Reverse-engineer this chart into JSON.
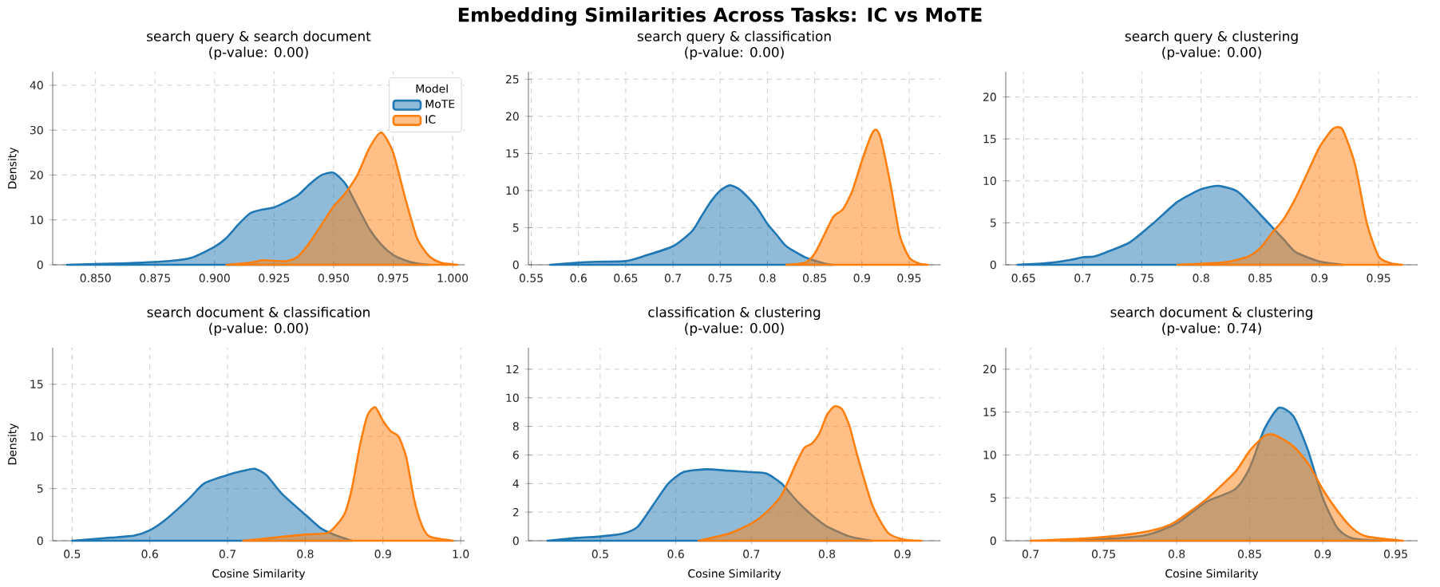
{
  "chart_data": [
    {
      "type": "other",
      "title": "Embedding Similarities Across Tasks: IC vs MoTE"
    },
    {
      "type": "area",
      "title": "search query & search document",
      "subtitle": "(p-value: 0.00)",
      "ylabel": "Density",
      "legend_title": "Model",
      "legend": "top right",
      "grid": true,
      "xlim": [
        0.832,
        1.005
      ],
      "ylim": [
        0,
        43
      ],
      "xticks": [
        {
          "value": 0.85,
          "label": "0.850"
        },
        {
          "value": 0.875,
          "label": "0.875"
        },
        {
          "value": 0.9,
          "label": "0.900"
        },
        {
          "value": 0.925,
          "label": "0.925"
        },
        {
          "value": 0.95,
          "label": "0.950"
        },
        {
          "value": 0.975,
          "label": "0.975"
        },
        {
          "value": 1.0,
          "label": "1.000"
        }
      ],
      "yticks": [
        0,
        10,
        20,
        30,
        40
      ],
      "series": [
        {
          "name": "MoTE",
          "color": "#1f77b4",
          "x": [
            0.838,
            0.86,
            0.88,
            0.89,
            0.9,
            0.905,
            0.91,
            0.915,
            0.92,
            0.925,
            0.93,
            0.935,
            0.94,
            0.945,
            0.95,
            0.955,
            0.96,
            0.965,
            0.97,
            0.975,
            0.98,
            0.985,
            0.99
          ],
          "values": [
            0,
            0.3,
            0.8,
            1.5,
            4,
            6,
            9,
            11.5,
            12.3,
            12.8,
            14,
            15.5,
            18,
            20,
            20.5,
            18,
            13,
            8,
            4.5,
            2.2,
            1,
            0.3,
            0
          ]
        },
        {
          "name": "IC",
          "color": "#ff7f0e",
          "x": [
            0.905,
            0.915,
            0.92,
            0.925,
            0.93,
            0.935,
            0.94,
            0.945,
            0.95,
            0.955,
            0.96,
            0.965,
            0.97,
            0.975,
            0.98,
            0.985,
            0.99,
            0.995,
            1.002
          ],
          "values": [
            0,
            0.5,
            1,
            0.9,
            0.8,
            1.8,
            5,
            9,
            13,
            16,
            20,
            26,
            29.5,
            25,
            15,
            6,
            2,
            0.5,
            0
          ]
        }
      ]
    },
    {
      "type": "area",
      "title": "search query & classification",
      "subtitle": "(p-value: 0.00)",
      "grid": true,
      "xlim": [
        0.547,
        0.983
      ],
      "ylim": [
        0,
        26
      ],
      "xticks": [
        0.55,
        0.6,
        0.65,
        0.7,
        0.75,
        0.8,
        0.85,
        0.9,
        0.95
      ],
      "yticks": [
        0,
        5,
        10,
        15,
        20,
        25
      ],
      "series": [
        {
          "color": "#1f77b4",
          "x": [
            0.57,
            0.6,
            0.62,
            0.65,
            0.67,
            0.7,
            0.72,
            0.73,
            0.74,
            0.75,
            0.76,
            0.77,
            0.78,
            0.79,
            0.8,
            0.81,
            0.82,
            0.84,
            0.86,
            0.87
          ],
          "values": [
            0,
            0.3,
            0.4,
            0.5,
            1.2,
            2.5,
            4.5,
            6.5,
            8.5,
            10,
            10.7,
            10.2,
            9,
            7.5,
            5.5,
            4,
            2.5,
            1,
            0.2,
            0
          ]
        },
        {
          "color": "#ff7f0e",
          "x": [
            0.82,
            0.84,
            0.85,
            0.86,
            0.87,
            0.88,
            0.89,
            0.9,
            0.91,
            0.915,
            0.92,
            0.93,
            0.94,
            0.95,
            0.96,
            0.97
          ],
          "values": [
            0,
            0.3,
            1.5,
            4,
            6.5,
            7.5,
            10,
            14,
            17.5,
            18.2,
            17,
            11,
            4,
            1,
            0.2,
            0
          ]
        }
      ]
    },
    {
      "type": "area",
      "title": "search query & clustering",
      "subtitle": "(p-value: 0.00)",
      "grid": true,
      "xlim": [
        0.635,
        0.983
      ],
      "ylim": [
        0,
        23
      ],
      "xticks": [
        0.65,
        0.7,
        0.75,
        0.8,
        0.85,
        0.9,
        0.95
      ],
      "yticks": [
        0,
        5,
        10,
        15,
        20
      ],
      "series": [
        {
          "color": "#1f77b4",
          "x": [
            0.645,
            0.67,
            0.69,
            0.7,
            0.71,
            0.72,
            0.74,
            0.76,
            0.78,
            0.8,
            0.815,
            0.83,
            0.84,
            0.85,
            0.86,
            0.87,
            0.88,
            0.9,
            0.92
          ],
          "values": [
            0,
            0.2,
            0.6,
            0.9,
            1,
            1.5,
            2.7,
            5,
            7.5,
            9,
            9.4,
            8.8,
            7.5,
            6,
            4.5,
            3,
            1.5,
            0.4,
            0
          ]
        },
        {
          "color": "#ff7f0e",
          "x": [
            0.78,
            0.82,
            0.84,
            0.85,
            0.86,
            0.87,
            0.88,
            0.89,
            0.9,
            0.91,
            0.915,
            0.92,
            0.93,
            0.94,
            0.95,
            0.96,
            0.97
          ],
          "values": [
            0,
            0.3,
            1,
            2,
            3.8,
            5.5,
            8,
            11,
            14,
            16,
            16.4,
            16,
            12,
            5,
            1,
            0.2,
            0
          ]
        }
      ]
    },
    {
      "type": "area",
      "title": "search document & classification",
      "subtitle": "(p-value: 0.00)",
      "xlabel": "Cosine Similarity",
      "ylabel": "Density",
      "grid": true,
      "xlim": [
        0.475,
        1.005
      ],
      "ylim": [
        0,
        18.5
      ],
      "xticks": [
        0.5,
        0.6,
        0.7,
        0.8,
        0.9,
        {
          "value": 1.0,
          "label": "1.0"
        }
      ],
      "yticks": [
        0,
        5,
        10,
        15
      ],
      "series": [
        {
          "color": "#1f77b4",
          "x": [
            0.5,
            0.55,
            0.58,
            0.6,
            0.62,
            0.65,
            0.67,
            0.7,
            0.72,
            0.735,
            0.75,
            0.77,
            0.8,
            0.82,
            0.84,
            0.86
          ],
          "values": [
            0,
            0.3,
            0.5,
            1,
            2,
            4,
            5.5,
            6.3,
            6.7,
            6.9,
            6.3,
            4.5,
            2.5,
            1.2,
            0.5,
            0
          ]
        },
        {
          "color": "#ff7f0e",
          "x": [
            0.72,
            0.76,
            0.8,
            0.83,
            0.85,
            0.86,
            0.87,
            0.88,
            0.89,
            0.9,
            0.91,
            0.92,
            0.93,
            0.94,
            0.95,
            0.96,
            0.99
          ],
          "values": [
            0,
            0.3,
            0.6,
            0.8,
            2.5,
            5,
            9,
            12,
            12.8,
            11.5,
            10.5,
            10,
            8,
            4,
            1.5,
            0.4,
            0
          ]
        }
      ]
    },
    {
      "type": "area",
      "title": "classification & clustering",
      "subtitle": "(p-value: 0.00)",
      "xlabel": "Cosine Similarity",
      "grid": true,
      "xlim": [
        0.405,
        0.95
      ],
      "ylim": [
        0,
        13.5
      ],
      "xticks": [
        0.5,
        0.6,
        0.7,
        0.8,
        0.9
      ],
      "yticks": [
        0,
        2,
        4,
        6,
        8,
        10,
        12
      ],
      "series": [
        {
          "color": "#1f77b4",
          "x": [
            0.43,
            0.47,
            0.5,
            0.53,
            0.55,
            0.57,
            0.59,
            0.61,
            0.64,
            0.67,
            0.7,
            0.72,
            0.74,
            0.76,
            0.78,
            0.8,
            0.83,
            0.86
          ],
          "values": [
            0,
            0.2,
            0.3,
            0.5,
            1,
            2.5,
            4,
            4.8,
            5,
            4.9,
            4.8,
            4.7,
            4,
            2.8,
            1.8,
            1,
            0.3,
            0
          ]
        },
        {
          "color": "#ff7f0e",
          "x": [
            0.63,
            0.67,
            0.7,
            0.72,
            0.74,
            0.76,
            0.77,
            0.78,
            0.79,
            0.8,
            0.81,
            0.82,
            0.83,
            0.84,
            0.86,
            0.88,
            0.9,
            0.925
          ],
          "values": [
            0,
            0.5,
            1.2,
            2,
            3.2,
            5.5,
            6.5,
            6.8,
            7.5,
            8.8,
            9.4,
            9.2,
            8,
            6,
            2.5,
            0.6,
            0.1,
            0
          ]
        }
      ]
    },
    {
      "type": "area",
      "title": "search document & clustering",
      "subtitle": "(p-value: 0.74)",
      "xlabel": "Cosine Similarity",
      "grid": true,
      "xlim": [
        0.683,
        0.965
      ],
      "ylim": [
        0,
        22.5
      ],
      "xticks": [
        0.7,
        0.75,
        0.8,
        0.85,
        0.9,
        0.95
      ],
      "yticks": [
        0,
        5,
        10,
        15,
        20
      ],
      "series": [
        {
          "color": "#1f77b4",
          "x": [
            0.72,
            0.76,
            0.78,
            0.8,
            0.82,
            0.84,
            0.85,
            0.86,
            0.87,
            0.88,
            0.89,
            0.9,
            0.91,
            0.92,
            0.94
          ],
          "values": [
            0,
            0.3,
            0.7,
            2,
            4.5,
            6,
            8.5,
            13,
            15.5,
            14.5,
            10.5,
            5,
            1.5,
            0.3,
            0
          ]
        },
        {
          "color": "#ff7f0e",
          "x": [
            0.7,
            0.74,
            0.77,
            0.79,
            0.8,
            0.82,
            0.84,
            0.85,
            0.86,
            0.865,
            0.87,
            0.88,
            0.89,
            0.9,
            0.91,
            0.92,
            0.93,
            0.955
          ],
          "values": [
            0,
            0.3,
            0.8,
            1.5,
            2.3,
            4.8,
            8,
            10.5,
            12.2,
            12.4,
            12.1,
            11,
            9,
            6,
            3.5,
            1.5,
            0.5,
            0
          ]
        }
      ]
    }
  ]
}
